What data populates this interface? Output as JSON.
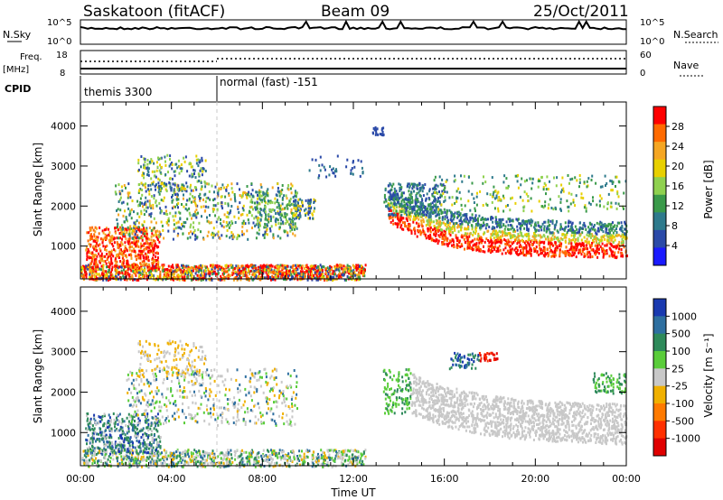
{
  "header": {
    "station": "Saskatoon (fitACF)",
    "beam": "Beam 09",
    "date": "25/Oct/2011"
  },
  "top_panels": {
    "nsky_label": "N.Sky",
    "nsky_ticks": [
      "10^5",
      "10^0"
    ],
    "nsearch_label": "N.Search",
    "nsearch_ticks": [
      "10^5",
      "10^0"
    ],
    "freq_label_line1": "Freq.",
    "freq_label_line2": "[MHz]",
    "freq_ticks": [
      "18",
      "8"
    ],
    "nave_label": "Nave",
    "nave_ticks": [
      "60",
      "0"
    ],
    "cpid_label": "CPID",
    "cpid_entries": [
      {
        "name": "themis 3300",
        "start_hour": 0
      },
      {
        "name": "normal (fast) -151",
        "start_hour": 6
      }
    ]
  },
  "power_colorbar": {
    "label": "Power [dB]",
    "ticks": [
      "28",
      "24",
      "20",
      "16",
      "12",
      "8",
      "4"
    ],
    "colors": [
      "#ff0000",
      "#ff6a00",
      "#f5a623",
      "#e8d000",
      "#8fd14f",
      "#3a9a4a",
      "#2e7a8c",
      "#2b4aa8",
      "#1a1aff"
    ]
  },
  "velocity_colorbar": {
    "label": "Velocity [m s⁻¹]",
    "ticks": [
      "1000",
      "500",
      "100",
      "25",
      "-25",
      "-100",
      "-500",
      "-1000"
    ],
    "colors": [
      "#1a3ab0",
      "#2e6fa0",
      "#2e8a5a",
      "#5acd3a",
      "#c8c8c8",
      "#f0b000",
      "#ff7a00",
      "#ff3000",
      "#e00000"
    ]
  },
  "chart_data": [
    {
      "type": "heatmap",
      "title": "Power",
      "ylabel": "Slant Range [km]",
      "xlabel": "",
      "y_ticks": [
        "1000",
        "2000",
        "3000",
        "4000"
      ],
      "ylim": [
        180,
        4600
      ],
      "xlim_hours": [
        0,
        24
      ],
      "features": [
        {
          "desc": "near-range strong echoes",
          "t0": 0,
          "t1": 12.5,
          "r0": 200,
          "r1": 600,
          "level": "high"
        },
        {
          "desc": "evening band",
          "t0": 13.5,
          "t1": 24,
          "r0": 700,
          "r1": 2500,
          "level": "high"
        },
        {
          "desc": "morning patches",
          "t0": 0.3,
          "t1": 10,
          "r0": 800,
          "r1": 3200,
          "level": "mixed"
        }
      ]
    },
    {
      "type": "heatmap",
      "title": "Velocity",
      "ylabel": "Slant Range [km]",
      "xlabel": "Time UT",
      "x_ticks": [
        "00:00",
        "04:00",
        "08:00",
        "12:00",
        "16:00",
        "20:00",
        "00:00"
      ],
      "y_ticks": [
        "1000",
        "2000",
        "3000",
        "4000"
      ],
      "ylim": [
        180,
        4600
      ],
      "xlim_hours": [
        0,
        24
      ]
    }
  ]
}
